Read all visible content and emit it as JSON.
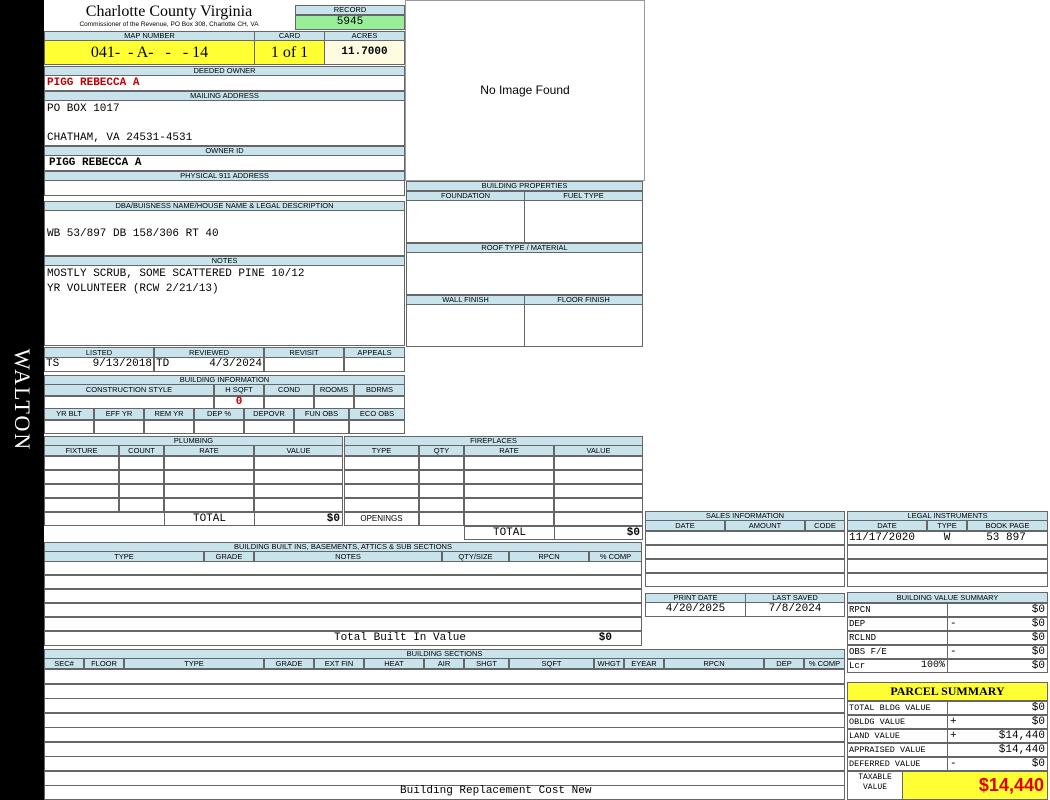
{
  "sidebar": "WALTON",
  "header": {
    "title": "Charlotte County Virginia",
    "subtitle": "Commissioner of the Revenue, PO Box 308, Charlotte CH, VA"
  },
  "record": {
    "label": "RECORD",
    "value": "5945"
  },
  "map_number": {
    "label": "MAP NUMBER",
    "value": "041-  - A-   -   - 14"
  },
  "card": {
    "label": "CARD",
    "value": "1 of 1"
  },
  "acres": {
    "label": "ACRES",
    "value": "11.7000"
  },
  "image_placeholder": "No Image Found",
  "deeded_owner": {
    "label": "DEEDED OWNER",
    "value": "PIGG REBECCA A"
  },
  "mailing_address": {
    "label": "MAILING ADDRESS",
    "lines": [
      "PO BOX 1017",
      "CHATHAM, VA 24531-4531"
    ]
  },
  "owner_id": {
    "label": "OWNER ID",
    "value": "PIGG REBECCA A"
  },
  "physical_address": {
    "label": "PHYSICAL 911 ADDRESS"
  },
  "legal_description": {
    "label": "DBA/BUISNESS NAME/HOUSE NAME & LEGAL DESCRIPTION",
    "value": "WB 53/897 DB 158/306 RT 40"
  },
  "notes": {
    "label": "NOTES",
    "lines": [
      "MOSTLY SCRUB, SOME SCATTERED PINE 10/12",
      "YR VOLUNTEER (RCW 2/21/13)"
    ]
  },
  "review": {
    "headers": [
      "LISTED",
      "REVIEWED",
      "REVISIT",
      "APPEALS"
    ],
    "listed_by": "TS",
    "listed_date": "9/13/2018",
    "reviewed_by": "TD",
    "reviewed_date": "4/3/2024"
  },
  "building_information": {
    "title": "BUILDING INFORMATION",
    "row1_headers": [
      "CONSTRUCTION STYLE",
      "H SQFT",
      "COND",
      "ROOMS",
      "BDRMS"
    ],
    "hsqft": "0",
    "row2_headers": [
      "YR BLT",
      "EFF YR",
      "REM YR",
      "DEP %",
      "DEPOVR",
      "FUN OBS",
      "ECO OBS"
    ]
  },
  "building_properties": {
    "title": "BUILDING PROPERTIES",
    "labels": [
      "FOUNDATION",
      "FUEL TYPE",
      "ROOF TYPE / MATERIAL",
      "WALL FINISH",
      "FLOOR FINISH"
    ]
  },
  "plumbing": {
    "title": "PLUMBING",
    "headers": [
      "FIXTURE",
      "COUNT",
      "RATE",
      "VALUE"
    ],
    "total_label": "TOTAL",
    "total": "$0"
  },
  "fireplaces": {
    "title": "FIREPLACES",
    "headers": [
      "TYPE",
      "QTY",
      "RATE",
      "VALUE"
    ],
    "openings_label": "OPENINGS",
    "total_label": "TOTAL",
    "total": "$0"
  },
  "sales": {
    "title": "SALES INFORMATION",
    "headers": [
      "DATE",
      "AMOUNT",
      "CODE"
    ]
  },
  "legal_instruments": {
    "title": "LEGAL INSTRUMENTS",
    "headers": [
      "DATE",
      "TYPE",
      "BOOK PAGE"
    ],
    "rows": [
      [
        "11/17/2020",
        "W",
        "53 897"
      ]
    ]
  },
  "print_date": {
    "label": "PRINT DATE",
    "value": "4/20/2025"
  },
  "last_saved": {
    "label": "LAST SAVED",
    "value": "7/8/2024"
  },
  "built_ins": {
    "title": "BUILDING BUILT INS, BASEMENTS, ATTICS & SUB SECTIONS",
    "headers": [
      "TYPE",
      "GRADE",
      "NOTES",
      "QTY/SIZE",
      "RPCN",
      "% COMP"
    ],
    "total_label": "Total Built In Value",
    "total": "$0"
  },
  "building_sections": {
    "title": "BUILDING SECTIONS",
    "headers": [
      "SEC#",
      "FLOOR",
      "TYPE",
      "GRADE",
      "EXT FIN",
      "HEAT",
      "AIR",
      "SHGT",
      "SQFT",
      "WHGT",
      "EYEAR",
      "RPCN",
      "DEP",
      "% COMP"
    ],
    "footer": "Building Replacement Cost New"
  },
  "value_summary": {
    "title": "BUILDING VALUE SUMMARY",
    "rows": [
      {
        "label": "RPCN",
        "value": "$0"
      },
      {
        "label": "DEP",
        "sign": "-",
        "value": "$0"
      },
      {
        "label": "RCLND",
        "value": "$0"
      },
      {
        "label": "OBS F/E",
        "sign": "-",
        "value": "$0"
      },
      {
        "label": "Lcr",
        "pct": "100%",
        "value": "$0"
      }
    ]
  },
  "parcel_summary": {
    "title": "PARCEL SUMMARY",
    "rows": [
      {
        "label": "TOTAL BLDG VALUE",
        "value": "$0"
      },
      {
        "label": "OBLDG VALUE",
        "sign": "+",
        "value": "$0"
      },
      {
        "label": "LAND VALUE",
        "sign": "+",
        "value": "$14,440"
      },
      {
        "label": "APPRAISED VALUE",
        "value": "$14,440"
      },
      {
        "label": "DEFERRED VALUE",
        "sign": "-",
        "value": "$0"
      }
    ],
    "taxable_label": "TAXABLE VALUE",
    "taxable": "$14,440"
  }
}
